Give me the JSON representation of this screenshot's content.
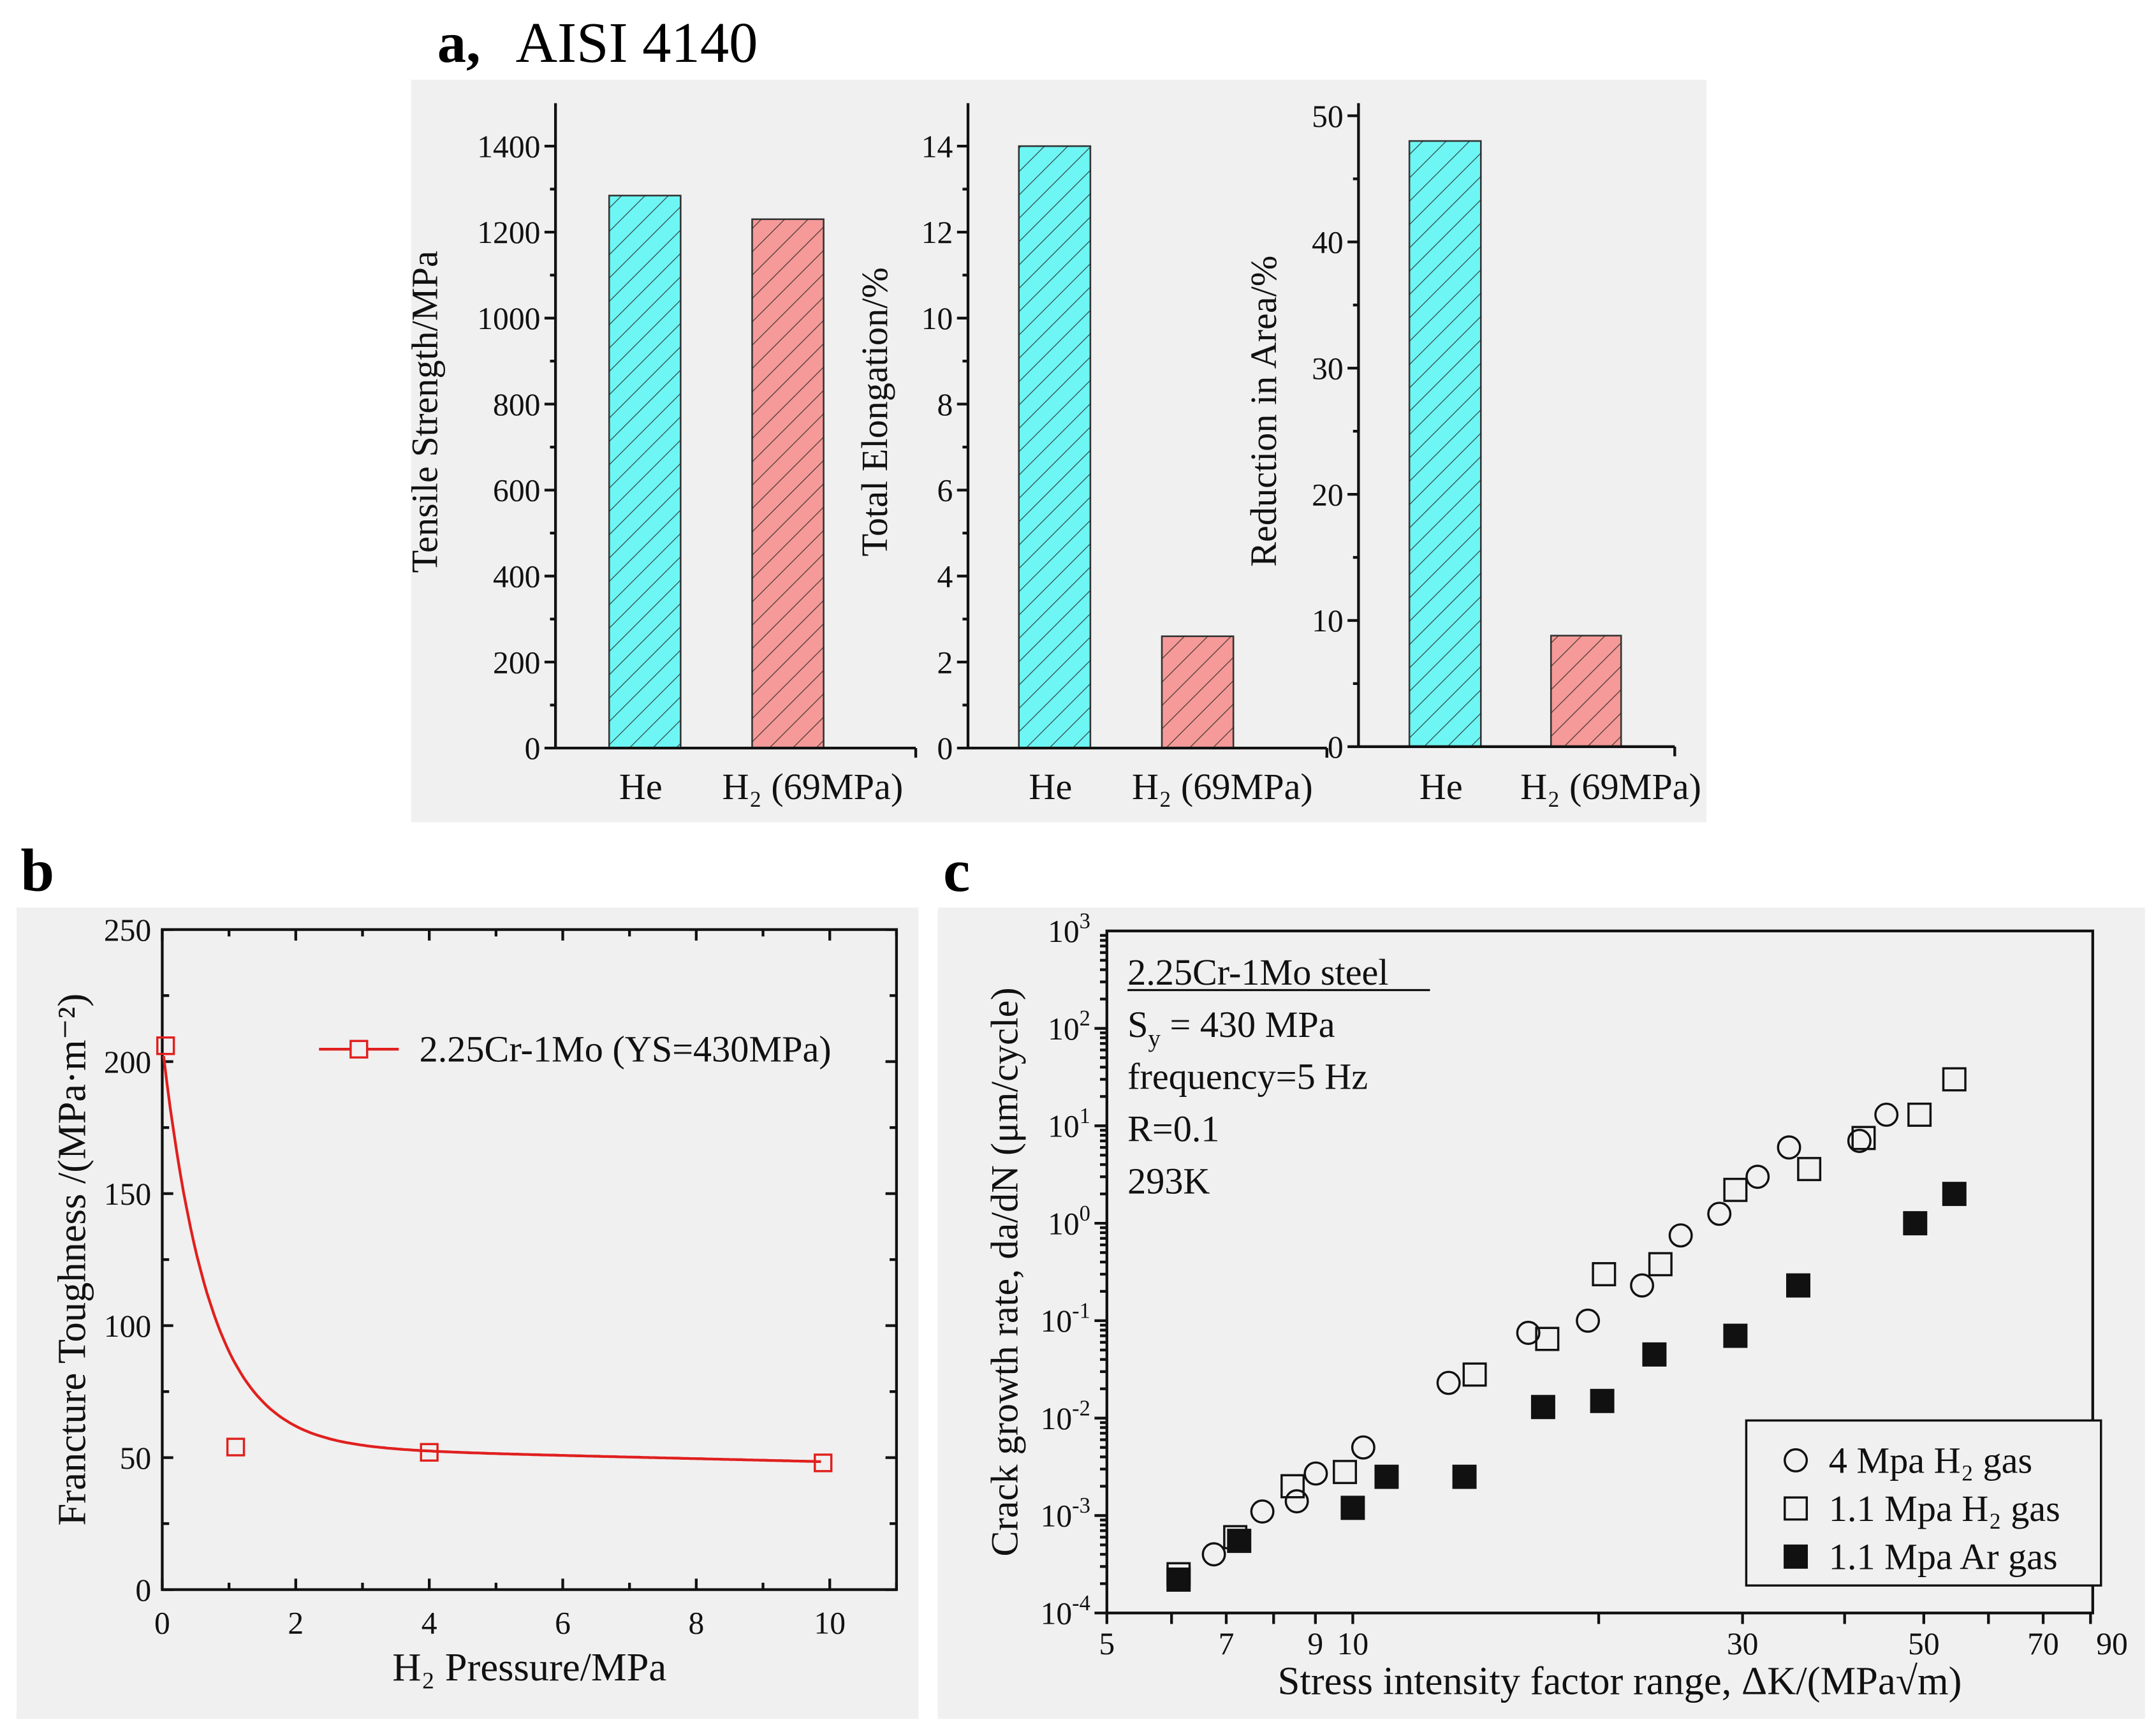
{
  "panel_a": {
    "letter": "a,",
    "title": "AISI 4140"
  },
  "panel_b": {
    "letter": "b"
  },
  "panel_c": {
    "letter": "c"
  },
  "colors": {
    "he_bar": "#6ef6f4",
    "h2_bar": "#f59a98",
    "curve": "#e0201e",
    "panel_bg": "#f0f0f0"
  },
  "chart_data": [
    {
      "type": "bar",
      "categories": [
        "He",
        "H₂ (69MPa)"
      ],
      "values": [
        1285,
        1230
      ],
      "ylabel": "Tensile Strength/MPa",
      "ylim": [
        0,
        1500
      ],
      "yticks": [
        0,
        200,
        400,
        600,
        800,
        1000,
        1200,
        1400
      ]
    },
    {
      "type": "bar",
      "categories": [
        "He",
        "H₂ (69MPa)"
      ],
      "values": [
        14.0,
        2.6
      ],
      "ylabel": "Total Elongation/%",
      "ylim": [
        0,
        15
      ],
      "yticks": [
        0,
        2,
        4,
        6,
        8,
        10,
        12,
        14
      ]
    },
    {
      "type": "bar",
      "categories": [
        "He",
        "H₂ (69MPa)"
      ],
      "values": [
        48.0,
        8.8
      ],
      "ylabel": "Reduction in Area/%",
      "ylim": [
        0,
        51
      ],
      "yticks": [
        0,
        10,
        20,
        30,
        40,
        50
      ]
    },
    {
      "type": "line",
      "xlabel": "H₂ Pressure/MPa",
      "ylabel": "Francture Toughness /(MPa·m⁻²)",
      "xlim": [
        0,
        11
      ],
      "ylim": [
        0,
        250
      ],
      "xticks": [
        0,
        2,
        4,
        6,
        8,
        10
      ],
      "yticks": [
        0,
        50,
        100,
        150,
        200,
        250
      ],
      "series": [
        {
          "name": "2.25Cr-1Mo (YS=430MPa)",
          "x": [
            0.05,
            1.1,
            4.0,
            9.9
          ],
          "y": [
            206,
            54,
            52,
            48
          ]
        }
      ],
      "legend": "top-right"
    },
    {
      "type": "scatter",
      "xlabel": "Stress intensity factor range, ΔK/(MPa√m)",
      "ylabel": "Crack growth rate, da/dN  (μm/cycle)",
      "xscale": "log",
      "yscale": "log",
      "xlim": [
        5,
        80.5
      ],
      "ylim": [
        0.0001,
        1000
      ],
      "xticks": [
        5,
        7,
        9,
        10,
        30,
        50,
        70,
        90
      ],
      "yticks_exp": [
        -4,
        -3,
        -2,
        -1,
        0,
        1,
        2,
        3
      ],
      "ytick_base": "10",
      "annotation": {
        "title": "2.25Cr-1Mo steel",
        "sy_main": "S",
        "sy_sub": "y",
        "sy_rest": " = 430 MPa",
        "lines": [
          "frequency=5 Hz",
          "R=0.1",
          "293K"
        ]
      },
      "legend": "bottom-right",
      "series": [
        {
          "name": "4 Mpa H₂ gas",
          "marker": "open-circle",
          "x": [
            6.76,
            7.75,
            8.54,
            9.01,
            10.3,
            13.1,
            16.4,
            19.4,
            22.6,
            25.2,
            28.1,
            31.3,
            34.2,
            41.7,
            45.0
          ],
          "y": [
            0.0004,
            0.0011,
            0.0014,
            0.0027,
            0.005,
            0.023,
            0.075,
            0.1,
            0.23,
            0.75,
            1.25,
            3,
            6,
            7,
            13
          ]
        },
        {
          "name": "1.1 Mpa H₂ gas",
          "marker": "open-square",
          "x": [
            6.12,
            7.18,
            8.44,
            9.78,
            14.1,
            17.3,
            20.3,
            23.8,
            29.4,
            36.2,
            42.2,
            49.4,
            54.5
          ],
          "y": [
            0.00025,
            0.0006,
            0.002,
            0.0028,
            0.028,
            0.065,
            0.3,
            0.38,
            2.2,
            3.6,
            7.5,
            13,
            30
          ]
        },
        {
          "name": "1.1 Mpa Ar gas",
          "marker": "filled-square",
          "x": [
            6.12,
            7.26,
            10.0,
            11.0,
            13.7,
            17.1,
            20.2,
            23.4,
            29.4,
            35.1,
            48.8,
            54.5
          ],
          "y": [
            0.00022,
            0.00055,
            0.0012,
            0.0025,
            0.0025,
            0.013,
            0.015,
            0.045,
            0.07,
            0.23,
            1.0,
            2.0
          ]
        }
      ]
    }
  ]
}
